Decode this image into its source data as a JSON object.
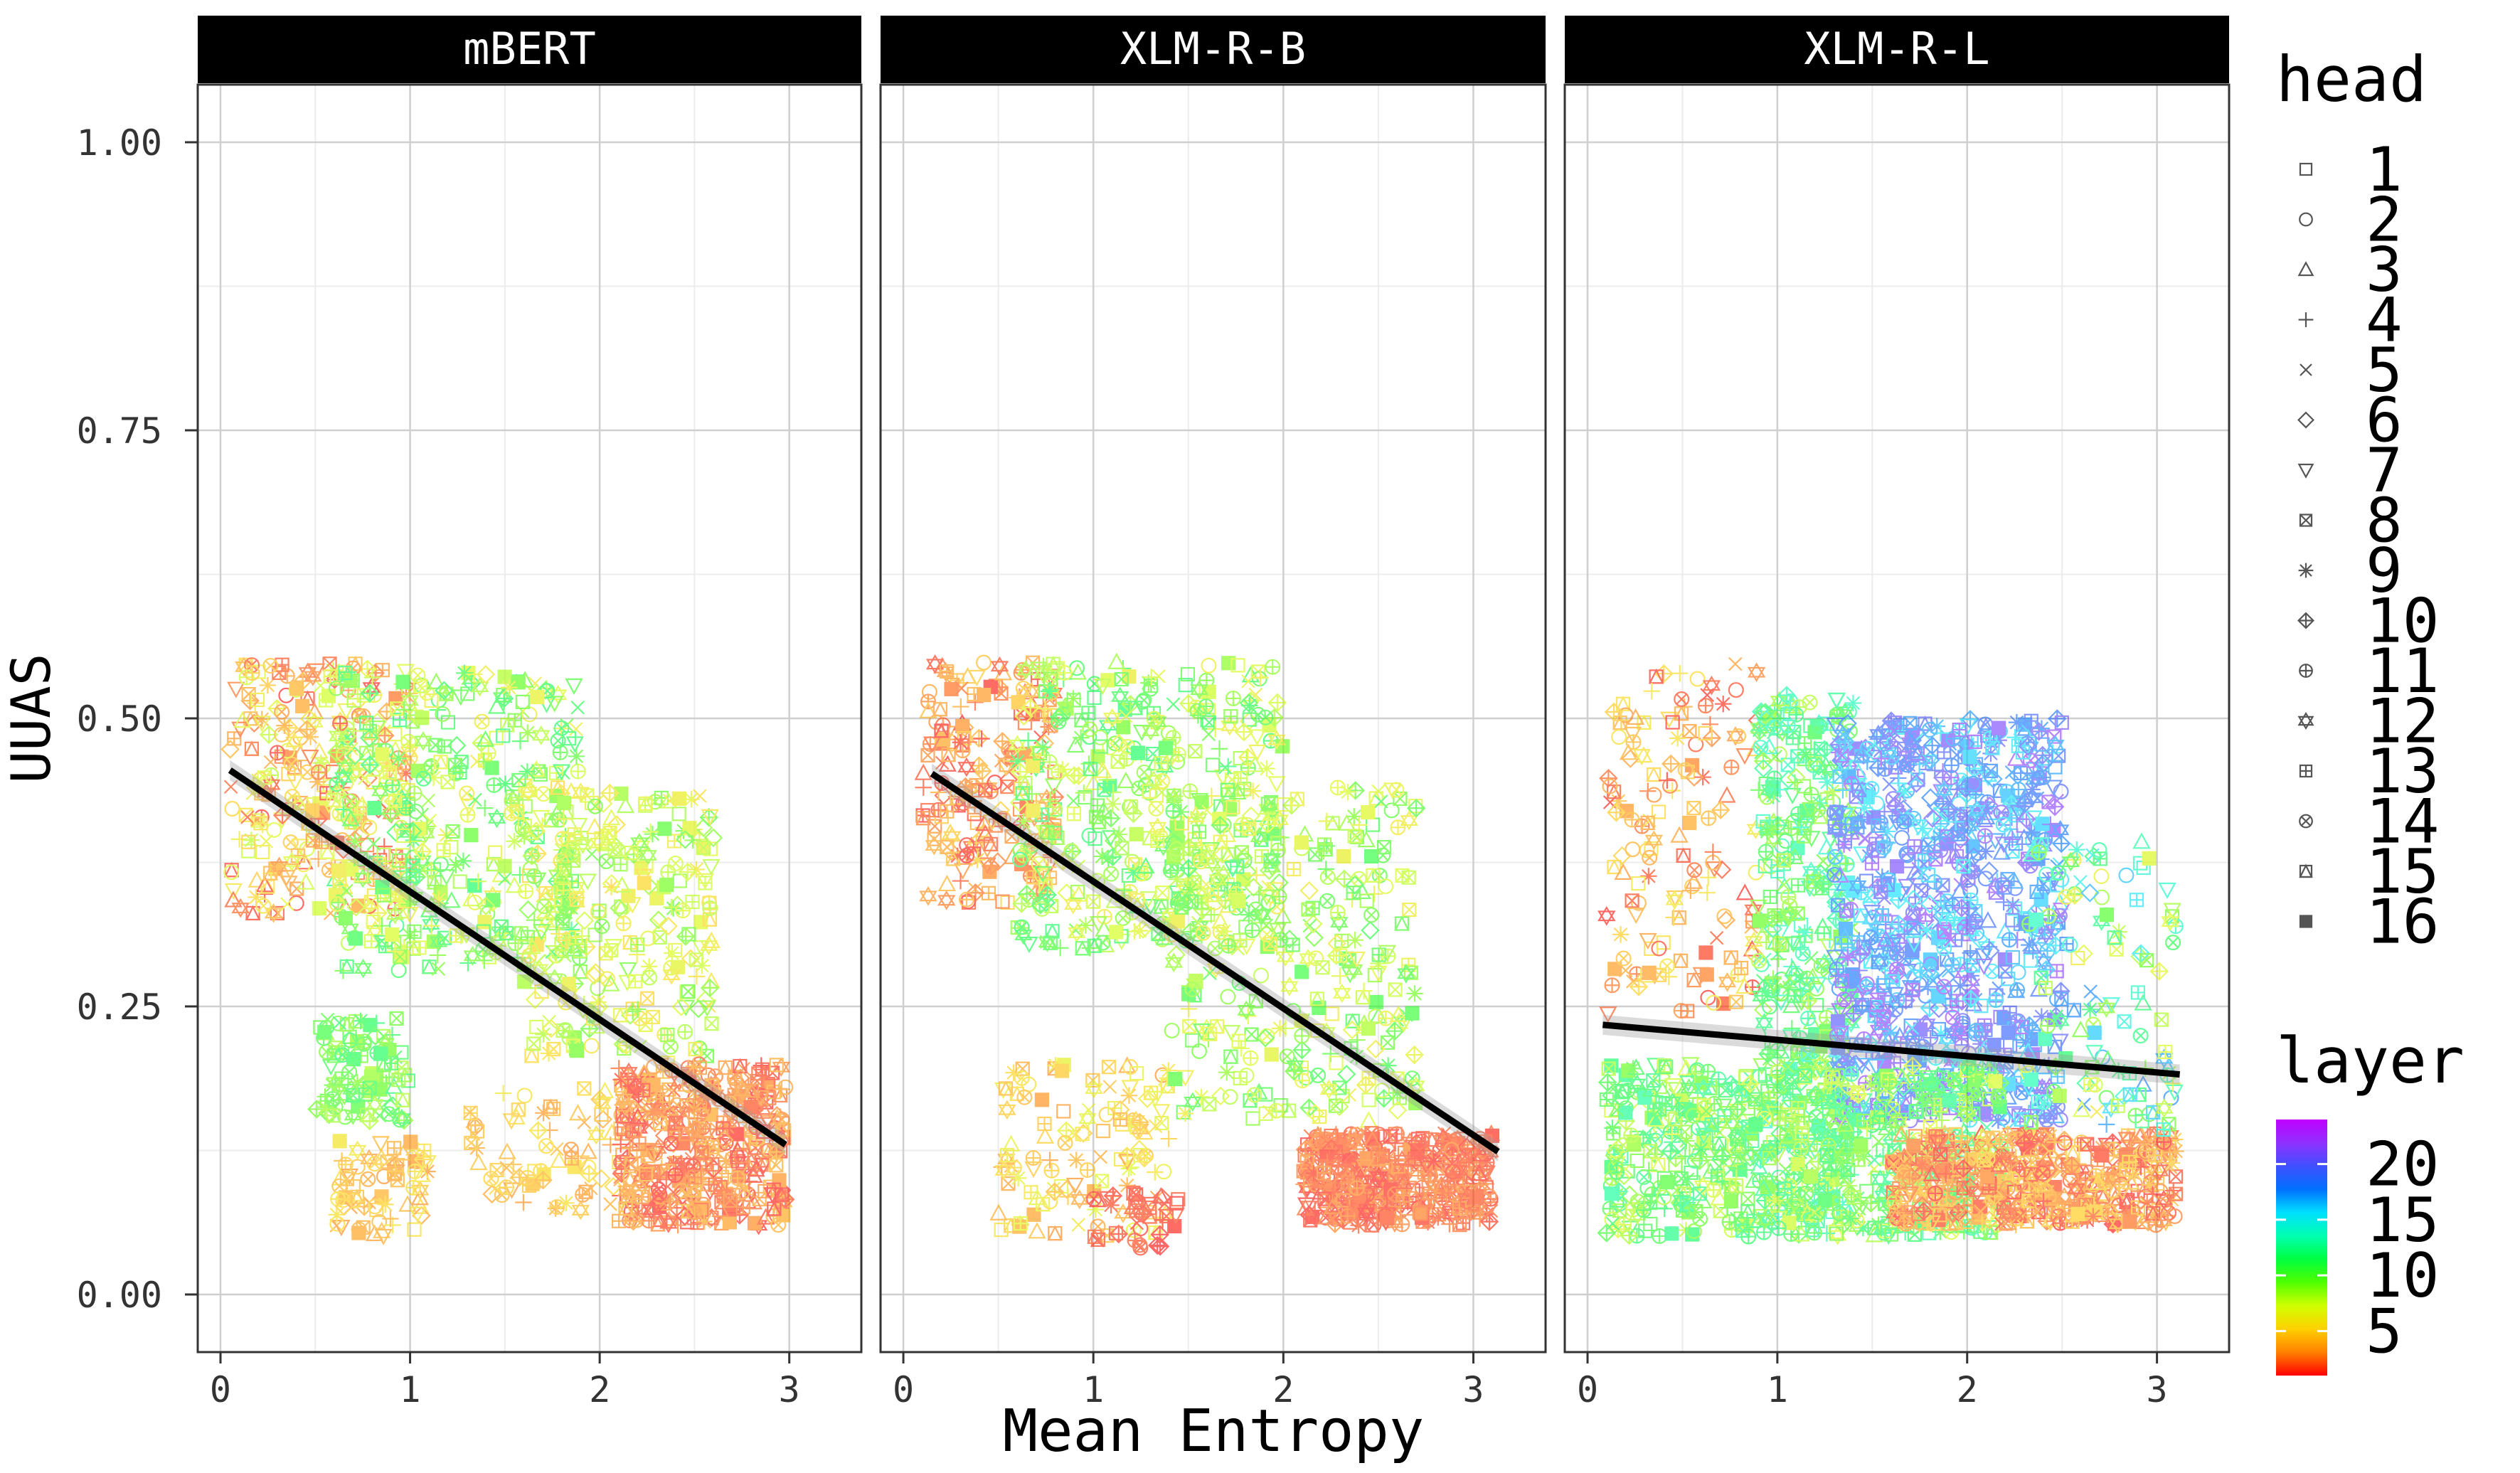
{
  "chart_data": {
    "type": "scatter",
    "ylabel": "UUAS",
    "xlabel": "Mean Entropy",
    "ylim": [
      -0.05,
      1.05
    ],
    "yticks": [
      0.0,
      0.25,
      0.5,
      0.75,
      1.0
    ],
    "ytick_labels": [
      "0.00",
      "0.25",
      "0.50",
      "0.75",
      "1.00"
    ],
    "xlim": [
      -0.12,
      3.38
    ],
    "xticks": [
      0,
      1,
      2,
      3
    ],
    "xtick_labels": [
      "0",
      "1",
      "2",
      "3"
    ],
    "grid": true,
    "facets": [
      {
        "title": "mBERT",
        "trend_line": {
          "x": [
            0.05,
            2.98
          ],
          "y": [
            0.455,
            0.13
          ]
        },
        "point_clusters": [
          {
            "x_range": [
              0.05,
              1.0
            ],
            "y_range": [
              0.33,
              0.55
            ],
            "layer_range": [
              1,
              8
            ],
            "count": 260
          },
          {
            "x_range": [
              0.6,
              1.9
            ],
            "y_range": [
              0.28,
              0.54
            ],
            "layer_range": [
              6,
              12
            ],
            "count": 380
          },
          {
            "x_range": [
              0.5,
              1.0
            ],
            "y_range": [
              0.15,
              0.24
            ],
            "layer_range": [
              8,
              12
            ],
            "count": 90
          },
          {
            "x_range": [
              0.6,
              1.1
            ],
            "y_range": [
              0.05,
              0.14
            ],
            "layer_range": [
              3,
              6
            ],
            "count": 70
          },
          {
            "x_range": [
              1.3,
              2.2
            ],
            "y_range": [
              0.07,
              0.18
            ],
            "layer_range": [
              3,
              6
            ],
            "count": 80
          },
          {
            "x_range": [
              1.6,
              2.6
            ],
            "y_range": [
              0.2,
              0.44
            ],
            "layer_range": [
              5,
              10
            ],
            "count": 260
          },
          {
            "x_range": [
              2.1,
              2.98
            ],
            "y_range": [
              0.06,
              0.2
            ],
            "layer_range": [
              1,
              4
            ],
            "count": 420
          }
        ]
      },
      {
        "title": "XLM-R-B",
        "trend_line": {
          "x": [
            0.15,
            3.13
          ],
          "y": [
            0.452,
            0.124
          ]
        },
        "point_clusters": [
          {
            "x_range": [
              0.1,
              0.8
            ],
            "y_range": [
              0.34,
              0.55
            ],
            "layer_range": [
              1,
              5
            ],
            "count": 200
          },
          {
            "x_range": [
              0.6,
              2.0
            ],
            "y_range": [
              0.3,
              0.55
            ],
            "layer_range": [
              6,
              12
            ],
            "count": 420
          },
          {
            "x_range": [
              0.5,
              1.4
            ],
            "y_range": [
              0.05,
              0.2
            ],
            "layer_range": [
              3,
              7
            ],
            "count": 120
          },
          {
            "x_range": [
              1.0,
              1.5
            ],
            "y_range": [
              0.04,
              0.09
            ],
            "layer_range": [
              1,
              2
            ],
            "count": 40
          },
          {
            "x_range": [
              1.4,
              2.7
            ],
            "y_range": [
              0.15,
              0.44
            ],
            "layer_range": [
              6,
              11
            ],
            "count": 300
          },
          {
            "x_range": [
              2.1,
              3.1
            ],
            "y_range": [
              0.06,
              0.14
            ],
            "layer_range": [
              1,
              3
            ],
            "count": 420
          }
        ]
      },
      {
        "title": "XLM-R-L",
        "trend_line": {
          "x": [
            0.08,
            3.12
          ],
          "y": [
            0.234,
            0.191
          ]
        },
        "point_clusters": [
          {
            "x_range": [
              0.1,
              0.9
            ],
            "y_range": [
              0.24,
              0.55
            ],
            "layer_range": [
              1,
              6
            ],
            "count": 150
          },
          {
            "x_range": [
              0.9,
              1.4
            ],
            "y_range": [
              0.06,
              0.52
            ],
            "layer_range": [
              8,
              14
            ],
            "count": 420
          },
          {
            "x_range": [
              1.3,
              2.5
            ],
            "y_range": [
              0.15,
              0.5
            ],
            "layer_range": [
              15,
              22
            ],
            "count": 900
          },
          {
            "x_range": [
              0.1,
              2.2
            ],
            "y_range": [
              0.05,
              0.2
            ],
            "layer_range": [
              7,
              13
            ],
            "count": 700
          },
          {
            "x_range": [
              1.6,
              3.1
            ],
            "y_range": [
              0.06,
              0.14
            ],
            "layer_range": [
              1,
              5
            ],
            "count": 500
          },
          {
            "x_range": [
              2.3,
              3.1
            ],
            "y_range": [
              0.14,
              0.4
            ],
            "layer_range": [
              6,
              18
            ],
            "count": 120
          }
        ]
      }
    ],
    "legend_shape": {
      "title": "head",
      "entries": [
        "1",
        "2",
        "3",
        "4",
        "5",
        "6",
        "7",
        "8",
        "9",
        "10",
        "11",
        "12",
        "13",
        "14",
        "15",
        "16"
      ]
    },
    "legend_color": {
      "title": "layer",
      "ticks": [
        5,
        10,
        15,
        20
      ],
      "tick_labels": [
        "5",
        "10",
        "15",
        "20"
      ],
      "range": [
        1,
        24
      ]
    },
    "colors": {
      "gradient": [
        "#ff0000",
        "#ff8000",
        "#ffd000",
        "#d0ff00",
        "#50ff00",
        "#00ff40",
        "#00ffb0",
        "#00e0ff",
        "#0070ff",
        "#4050ff",
        "#9030ff",
        "#c000ff"
      ],
      "trend_line": "#000000",
      "strip_bg": "#000000",
      "strip_text": "#ffffff",
      "grid_major": "#cfcfcf",
      "grid_minor": "#ececec",
      "panel_border": "#333333"
    }
  }
}
